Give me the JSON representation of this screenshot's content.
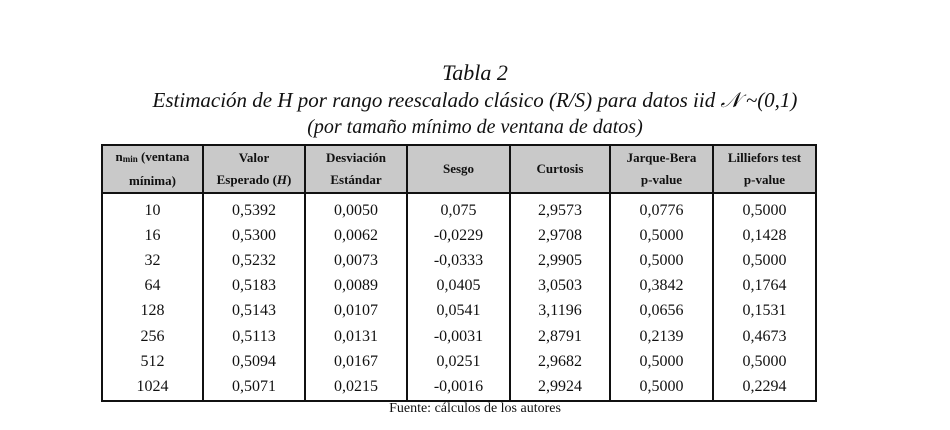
{
  "caption": {
    "title": "Tabla 2",
    "subtitle": "Estimación de H por rango reescalado clásico (R/S) para datos iid 𝒩 ~(0,1)",
    "note": "(por tamaño mínimo de ventana de datos)"
  },
  "table": {
    "headers": [
      {
        "main": "n",
        "sub": "min",
        "rest": " (ventana mínima)"
      },
      {
        "line1": "Valor",
        "line2": "Esperado (",
        "italic": "H",
        "close": ")"
      },
      {
        "line1": "Desviación",
        "line2": "Estándar"
      },
      {
        "text": "Sesgo"
      },
      {
        "text": "Curtosis"
      },
      {
        "line1": "Jarque-Bera",
        "line2": "p-value"
      },
      {
        "line1": "Lilliefors test",
        "line2": "p-value"
      }
    ],
    "rows": [
      [
        "10",
        "0,5392",
        "0,0050",
        "0,075",
        "2,9573",
        "0,0776",
        "0,5000"
      ],
      [
        "16",
        "0,5300",
        "0,0062",
        "-0,0229",
        "2,9708",
        "0,5000",
        "0,1428"
      ],
      [
        "32",
        "0,5232",
        "0,0073",
        "-0,0333",
        "2,9905",
        "0,5000",
        "0,5000"
      ],
      [
        "64",
        "0,5183",
        "0,0089",
        "0,0405",
        "3,0503",
        "0,3842",
        "0,1764"
      ],
      [
        "128",
        "0,5143",
        "0,0107",
        "0,0541",
        "3,1196",
        "0,0656",
        "0,1531"
      ],
      [
        "256",
        "0,5113",
        "0,0131",
        "-0,0031",
        "2,8791",
        "0,2139",
        "0,4673"
      ],
      [
        "512",
        "0,5094",
        "0,0167",
        "0,0251",
        "2,9682",
        "0,5000",
        "0,5000"
      ],
      [
        "1024",
        "0,5071",
        "0,0215",
        "-0,0016",
        "2,9924",
        "0,5000",
        "0,2294"
      ]
    ]
  },
  "footer": "Fuente: cálculos de los autores"
}
